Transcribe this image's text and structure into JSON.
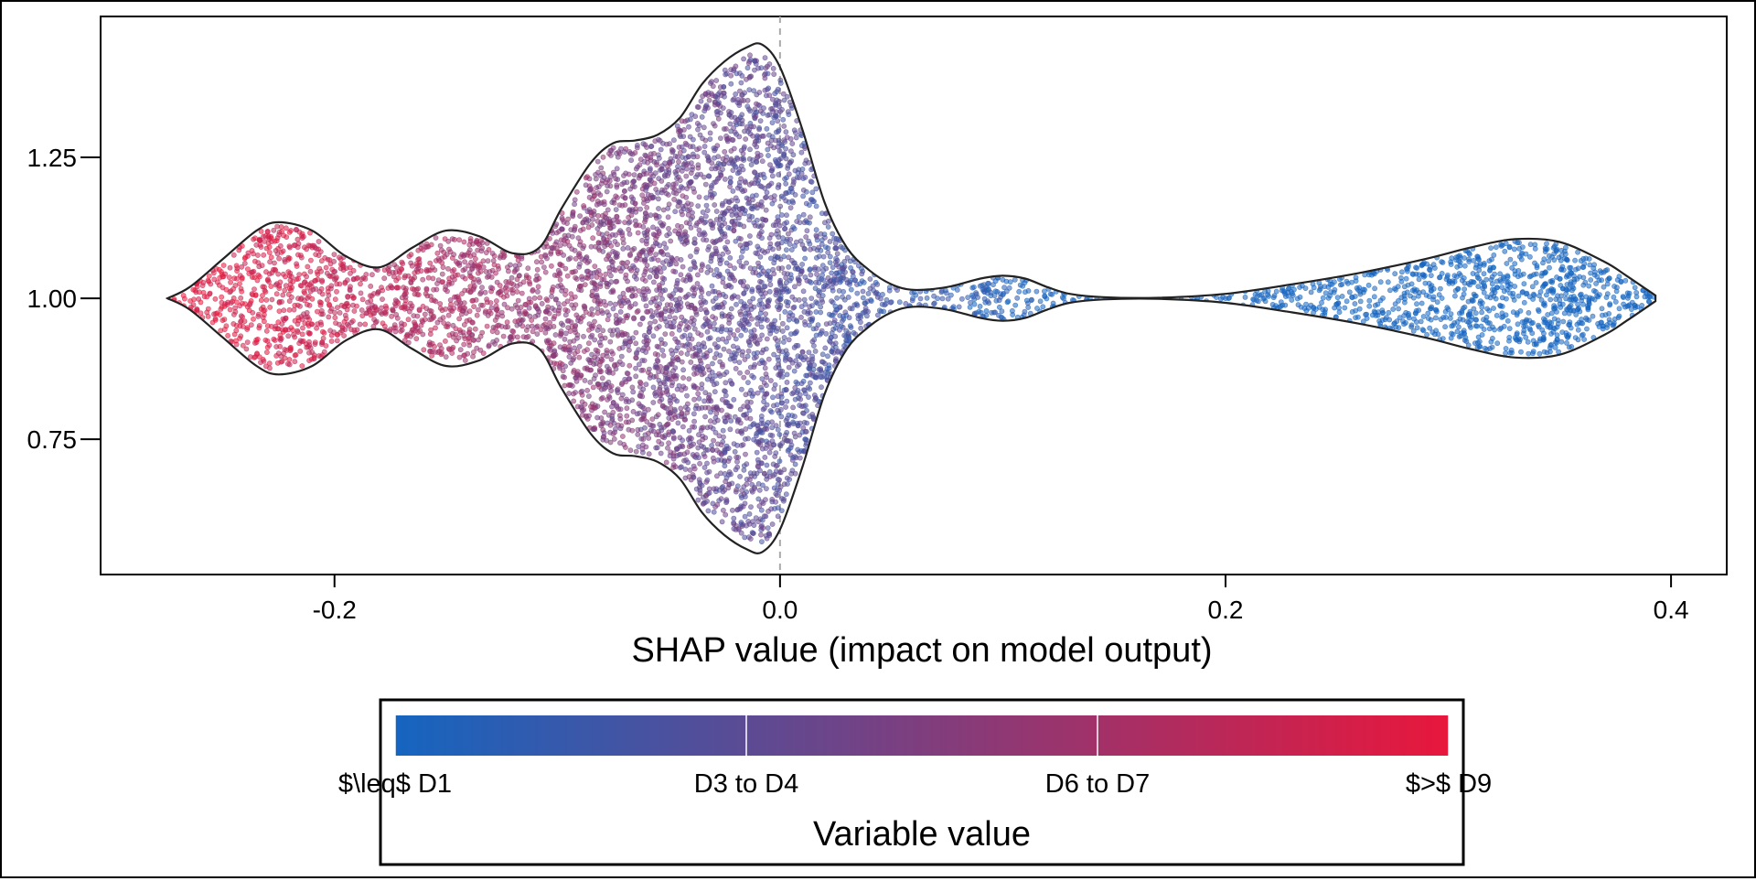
{
  "chart_data": {
    "type": "violin-beeswarm",
    "xlabel": "SHAP value (impact on model output)",
    "ylabel": "",
    "xlim": [
      -0.305,
      0.425
    ],
    "ylim": [
      0.51,
      1.5
    ],
    "x_ticks": [
      -0.2,
      0.0,
      0.2,
      0.4
    ],
    "x_tick_labels": [
      "-0.2",
      "0.0",
      "0.2",
      "0.4"
    ],
    "y_ticks": [
      0.75,
      1.0,
      1.25
    ],
    "y_tick_labels": [
      "0.75",
      "1.00",
      "1.25"
    ],
    "reference_line_x": 0.0,
    "violin_center_y": 1.0,
    "violin_profile": {
      "x": [
        -0.275,
        -0.265,
        -0.25,
        -0.235,
        -0.225,
        -0.21,
        -0.195,
        -0.18,
        -0.165,
        -0.15,
        -0.135,
        -0.12,
        -0.108,
        -0.098,
        -0.085,
        -0.075,
        -0.065,
        -0.055,
        -0.045,
        -0.035,
        -0.025,
        -0.015,
        -0.008,
        0.0,
        0.01,
        0.02,
        0.03,
        0.04,
        0.05,
        0.06,
        0.075,
        0.09,
        0.1,
        0.11,
        0.12,
        0.13,
        0.145,
        0.17,
        0.2,
        0.23,
        0.26,
        0.29,
        0.31,
        0.33,
        0.35,
        0.37,
        0.38,
        0.393
      ],
      "half_width": [
        0.0,
        0.02,
        0.07,
        0.12,
        0.135,
        0.12,
        0.075,
        0.055,
        0.09,
        0.12,
        0.11,
        0.08,
        0.09,
        0.16,
        0.24,
        0.275,
        0.28,
        0.29,
        0.32,
        0.38,
        0.42,
        0.445,
        0.45,
        0.41,
        0.3,
        0.17,
        0.09,
        0.05,
        0.025,
        0.015,
        0.02,
        0.035,
        0.04,
        0.035,
        0.02,
        0.008,
        0.002,
        0.001,
        0.008,
        0.025,
        0.045,
        0.07,
        0.09,
        0.105,
        0.1,
        0.065,
        0.04,
        0.005
      ]
    },
    "n_points": 6000,
    "color_low": "#1565c0",
    "color_high": "#e8173c",
    "colorbar": {
      "title": "Variable value",
      "tick_labels": [
        "$\\leq$ D1",
        "D3 to D4",
        "D6 to D7",
        "$>$ D9"
      ]
    }
  }
}
